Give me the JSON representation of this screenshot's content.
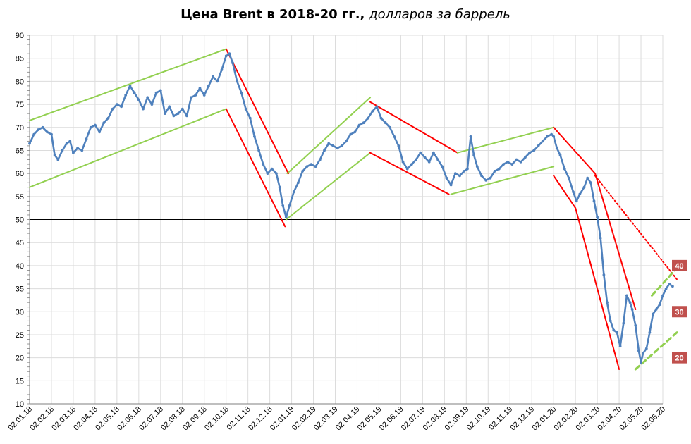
{
  "chart_data": {
    "type": "line",
    "title": "Цена Brent в 2018-20 гг.,",
    "subtitle": "долларов за баррель",
    "xlabel": "",
    "ylabel": "",
    "ylim": [
      10,
      90
    ],
    "yticks": [
      10,
      15,
      20,
      25,
      30,
      35,
      40,
      45,
      50,
      55,
      60,
      65,
      70,
      75,
      80,
      85,
      90
    ],
    "xtick_labels": [
      "02.01.18",
      "02.02.18",
      "02.03.18",
      "02.04.18",
      "02.05.18",
      "02.06.18",
      "02.07.18",
      "02.08.18",
      "02.09.18",
      "02.10.18",
      "02.11.18",
      "02.12.18",
      "02.01.19",
      "02.02.19",
      "02.03.19",
      "02.04.19",
      "02.05.19",
      "02.06.19",
      "02.07.19",
      "02.08.19",
      "02.09.19",
      "02.10.19",
      "02.11.19",
      "02.12.19",
      "02.01.20",
      "02.02.20",
      "02.03.20",
      "02.04.20",
      "02.05.20",
      "02.06.20"
    ],
    "grid": true,
    "reference_line": 50,
    "series": [
      {
        "name": "",
        "color": "#4f81bd",
        "points": [
          [
            0,
            66.5
          ],
          [
            0.2,
            68.5
          ],
          [
            0.4,
            69.5
          ],
          [
            0.6,
            70.0
          ],
          [
            0.8,
            69.0
          ],
          [
            1.0,
            68.5
          ],
          [
            1.15,
            64.0
          ],
          [
            1.3,
            63.0
          ],
          [
            1.5,
            65.0
          ],
          [
            1.7,
            66.5
          ],
          [
            1.85,
            67.0
          ],
          [
            2.0,
            64.5
          ],
          [
            2.2,
            65.5
          ],
          [
            2.4,
            65.0
          ],
          [
            2.6,
            67.5
          ],
          [
            2.8,
            70.0
          ],
          [
            3.0,
            70.5
          ],
          [
            3.2,
            69.0
          ],
          [
            3.4,
            71.0
          ],
          [
            3.6,
            72.0
          ],
          [
            3.8,
            74.0
          ],
          [
            4.0,
            75.0
          ],
          [
            4.2,
            74.5
          ],
          [
            4.4,
            77.0
          ],
          [
            4.6,
            79.0
          ],
          [
            4.8,
            77.5
          ],
          [
            5.0,
            76.0
          ],
          [
            5.2,
            74.0
          ],
          [
            5.4,
            76.5
          ],
          [
            5.6,
            75.0
          ],
          [
            5.8,
            77.5
          ],
          [
            6.0,
            78.0
          ],
          [
            6.2,
            73.0
          ],
          [
            6.4,
            74.5
          ],
          [
            6.6,
            72.5
          ],
          [
            6.8,
            73.0
          ],
          [
            7.0,
            74.0
          ],
          [
            7.2,
            72.5
          ],
          [
            7.4,
            76.5
          ],
          [
            7.6,
            77.0
          ],
          [
            7.8,
            78.5
          ],
          [
            8.0,
            77.0
          ],
          [
            8.2,
            79.0
          ],
          [
            8.4,
            81.0
          ],
          [
            8.6,
            80.0
          ],
          [
            8.8,
            82.5
          ],
          [
            9.0,
            85.5
          ],
          [
            9.15,
            86.0
          ],
          [
            9.3,
            84.0
          ],
          [
            9.5,
            80.0
          ],
          [
            9.7,
            77.5
          ],
          [
            9.9,
            74.0
          ],
          [
            10.1,
            72.0
          ],
          [
            10.3,
            68.0
          ],
          [
            10.5,
            65.0
          ],
          [
            10.7,
            62.0
          ],
          [
            10.9,
            60.0
          ],
          [
            11.1,
            61.0
          ],
          [
            11.3,
            60.0
          ],
          [
            11.45,
            57.0
          ],
          [
            11.6,
            53.0
          ],
          [
            11.75,
            50.5
          ],
          [
            11.9,
            53.0
          ],
          [
            12.1,
            56.0
          ],
          [
            12.3,
            58.0
          ],
          [
            12.5,
            60.5
          ],
          [
            12.7,
            61.5
          ],
          [
            12.9,
            62.0
          ],
          [
            13.1,
            61.5
          ],
          [
            13.3,
            63.0
          ],
          [
            13.5,
            65.0
          ],
          [
            13.7,
            66.5
          ],
          [
            13.9,
            66.0
          ],
          [
            14.1,
            65.5
          ],
          [
            14.3,
            66.0
          ],
          [
            14.5,
            67.0
          ],
          [
            14.7,
            68.5
          ],
          [
            14.9,
            69.0
          ],
          [
            15.1,
            70.5
          ],
          [
            15.3,
            71.0
          ],
          [
            15.5,
            72.0
          ],
          [
            15.7,
            73.5
          ],
          [
            15.9,
            74.5
          ],
          [
            16.1,
            72.0
          ],
          [
            16.3,
            71.0
          ],
          [
            16.5,
            70.0
          ],
          [
            16.7,
            68.0
          ],
          [
            16.9,
            66.0
          ],
          [
            17.1,
            62.5
          ],
          [
            17.3,
            61.0
          ],
          [
            17.5,
            62.0
          ],
          [
            17.7,
            63.0
          ],
          [
            17.9,
            64.5
          ],
          [
            18.1,
            63.5
          ],
          [
            18.3,
            62.5
          ],
          [
            18.5,
            64.5
          ],
          [
            18.7,
            63.0
          ],
          [
            18.9,
            61.5
          ],
          [
            19.1,
            59.0
          ],
          [
            19.3,
            57.5
          ],
          [
            19.5,
            60.0
          ],
          [
            19.7,
            59.5
          ],
          [
            19.9,
            60.5
          ],
          [
            20.05,
            61.0
          ],
          [
            20.2,
            68.0
          ],
          [
            20.35,
            64.0
          ],
          [
            20.5,
            61.5
          ],
          [
            20.7,
            59.5
          ],
          [
            20.9,
            58.5
          ],
          [
            21.1,
            59.0
          ],
          [
            21.3,
            60.5
          ],
          [
            21.5,
            61.0
          ],
          [
            21.7,
            62.0
          ],
          [
            21.9,
            62.5
          ],
          [
            22.1,
            62.0
          ],
          [
            22.3,
            63.0
          ],
          [
            22.5,
            62.5
          ],
          [
            22.7,
            63.5
          ],
          [
            22.9,
            64.5
          ],
          [
            23.1,
            65.0
          ],
          [
            23.3,
            66.0
          ],
          [
            23.5,
            67.0
          ],
          [
            23.7,
            68.0
          ],
          [
            23.9,
            68.5
          ],
          [
            24.0,
            68.0
          ],
          [
            24.15,
            65.5
          ],
          [
            24.3,
            64.0
          ],
          [
            24.5,
            61.0
          ],
          [
            24.7,
            59.0
          ],
          [
            24.9,
            56.0
          ],
          [
            25.05,
            54.0
          ],
          [
            25.2,
            55.5
          ],
          [
            25.4,
            57.0
          ],
          [
            25.55,
            59.0
          ],
          [
            25.7,
            58.0
          ],
          [
            25.85,
            54.0
          ],
          [
            26.0,
            50.5
          ],
          [
            26.15,
            46.0
          ],
          [
            26.3,
            38.0
          ],
          [
            26.45,
            32.0
          ],
          [
            26.6,
            28.0
          ],
          [
            26.75,
            26.0
          ],
          [
            26.9,
            25.5
          ],
          [
            27.05,
            22.5
          ],
          [
            27.2,
            27.5
          ],
          [
            27.35,
            33.5
          ],
          [
            27.5,
            32.0
          ],
          [
            27.6,
            30.5
          ],
          [
            27.75,
            27.0
          ],
          [
            27.9,
            21.5
          ],
          [
            28.0,
            19.0
          ],
          [
            28.1,
            21.0
          ],
          [
            28.25,
            22.0
          ],
          [
            28.4,
            25.5
          ],
          [
            28.55,
            29.5
          ],
          [
            28.7,
            30.5
          ],
          [
            28.85,
            31.5
          ],
          [
            29.0,
            33.5
          ],
          [
            29.15,
            35.0
          ],
          [
            29.3,
            36.0
          ],
          [
            29.45,
            35.5
          ]
        ]
      }
    ],
    "price_badges": [
      "40",
      "30",
      "20"
    ]
  }
}
